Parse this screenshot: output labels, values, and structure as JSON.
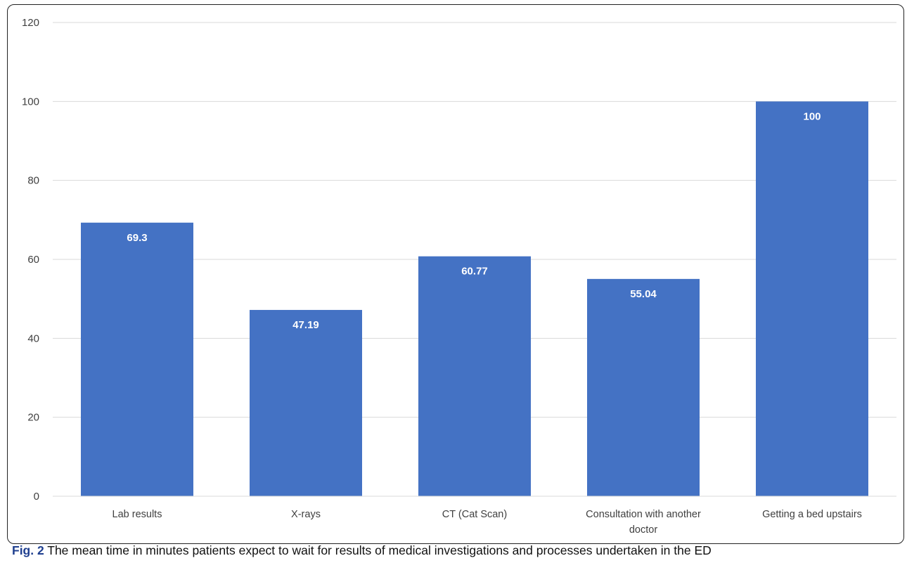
{
  "chart_data": {
    "type": "bar",
    "categories": [
      [
        "Lab results"
      ],
      [
        "X-rays"
      ],
      [
        "CT (Cat Scan)"
      ],
      [
        "Consultation with another",
        "doctor"
      ],
      [
        "Getting a bed upstairs"
      ]
    ],
    "values": [
      69.3,
      47.19,
      60.77,
      55.04,
      100
    ],
    "value_labels": [
      "69.3",
      "47.19",
      "60.77",
      "55.04",
      "100"
    ],
    "yticks": [
      "0",
      "20",
      "40",
      "60",
      "80",
      "100",
      "120"
    ],
    "ylim": [
      0,
      120
    ],
    "grid": true,
    "legend": "none",
    "bar_color": "#4472c4",
    "grid_color": "#d9d9d9"
  },
  "caption": {
    "label": "Fig. 2",
    "text": " The mean time in minutes patients expect to wait for results of medical investigations and processes undertaken in the ED"
  }
}
